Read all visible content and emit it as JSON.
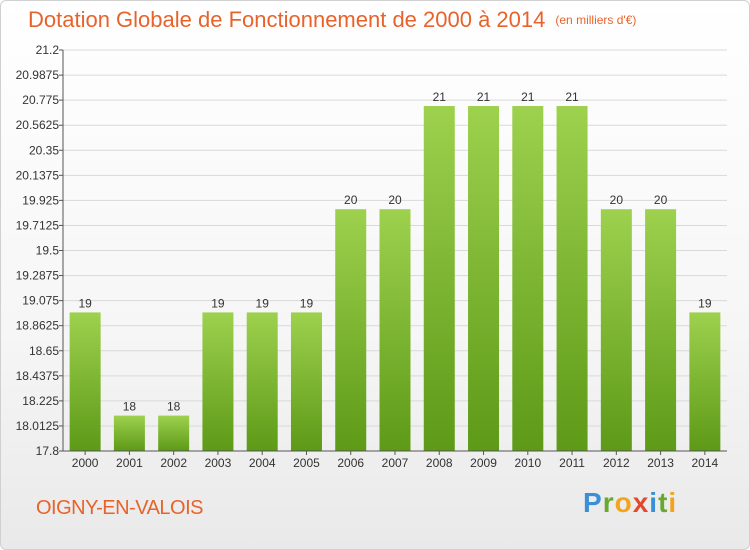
{
  "title": "Dotation Globale de Fonctionnement de 2000 à 2014",
  "unit_note": "(en milliers d'€)",
  "commune": "OIGNY-EN-VALOIS",
  "logo": {
    "p": "P",
    "r": "r",
    "o": "o",
    "x": "x",
    "i1": "i",
    "t": "t",
    "i2": "i"
  },
  "colors": {
    "bar_top": "#9dd14e",
    "bar_bottom": "#5d9a17",
    "title": "#e8632b"
  },
  "chart_data": {
    "type": "bar",
    "categories": [
      "2000",
      "2001",
      "2002",
      "2003",
      "2004",
      "2005",
      "2006",
      "2007",
      "2008",
      "2009",
      "2010",
      "2011",
      "2012",
      "2013",
      "2014"
    ],
    "values": [
      18.975,
      18.1,
      18.1,
      18.975,
      18.975,
      18.975,
      19.85,
      19.85,
      20.725,
      20.725,
      20.725,
      20.725,
      19.85,
      19.85,
      18.975
    ],
    "data_labels": [
      "19",
      "18",
      "18",
      "19",
      "19",
      "19",
      "20",
      "20",
      "21",
      "21",
      "21",
      "21",
      "20",
      "20",
      "19"
    ],
    "yticks": [
      17.8,
      18.0125,
      18.225,
      18.4375,
      18.65,
      18.8625,
      19.075,
      19.2875,
      19.5,
      19.7125,
      19.925,
      20.1375,
      20.35,
      20.5625,
      20.775,
      20.9875,
      21.2
    ],
    "ytick_labels": [
      "17.8",
      "18.0125",
      "18.225",
      "18.4375",
      "18.65",
      "18.8625",
      "19.075",
      "19.2875",
      "19.5",
      "19.7125",
      "19.925",
      "20.1375",
      "20.35",
      "20.5625",
      "20.775",
      "20.9875",
      "21.2"
    ],
    "ylim": [
      17.8,
      21.2
    ],
    "grid": true,
    "title": "Dotation Globale de Fonctionnement de 2000 à 2014",
    "xlabel": "",
    "ylabel": ""
  }
}
